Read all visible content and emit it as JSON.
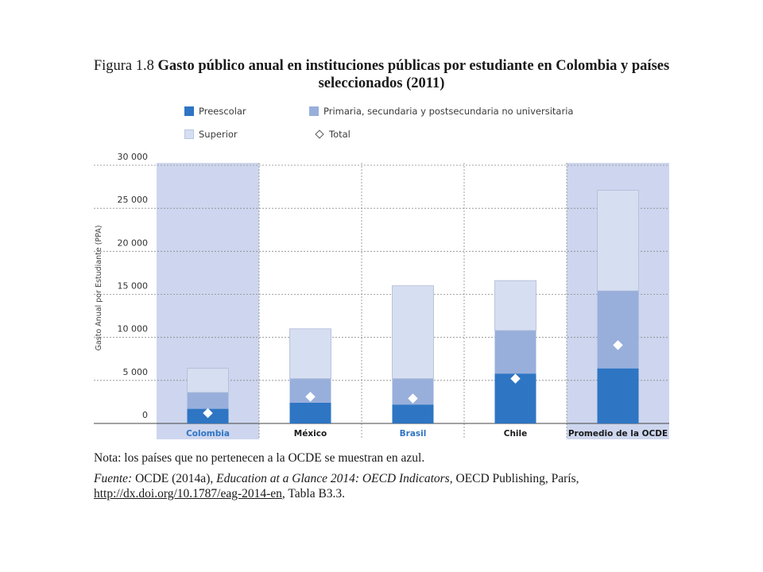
{
  "title": {
    "prefix": "Figura 1.8",
    "text": "Gasto público anual en instituciones públicas por estudiante en Colombia y países seleccionados (2011)"
  },
  "colors": {
    "preescolar": "#2e75c3",
    "primaria": "#98afdb",
    "superior": "#d6def1",
    "panel": "#cdd6ee",
    "total": "#ffffff"
  },
  "chart_data": {
    "type": "bar",
    "stacked": true,
    "categories": [
      "Colombia",
      "México",
      "Brasil",
      "Chile",
      "Promedio de la OCDE"
    ],
    "category_label_colors": [
      "#2e75c3",
      "#1a1a1a",
      "#2e75c3",
      "#1a1a1a",
      "#1a1a1a"
    ],
    "highlighted_categories": [
      "Colombia",
      "Promedio de la OCDE"
    ],
    "series": [
      {
        "name": "Preescolar",
        "values": [
          1700,
          2400,
          2200,
          5800,
          6400
        ]
      },
      {
        "name": "Primaria, secundaria y postsecundaria no universitaria",
        "values": [
          1900,
          2800,
          3000,
          5000,
          9000
        ]
      },
      {
        "name": "Superior",
        "values": [
          2800,
          5800,
          10800,
          5800,
          11700
        ]
      }
    ],
    "markers": {
      "name": "Total",
      "values": [
        1200,
        3100,
        2900,
        5200,
        9100
      ]
    },
    "ylabel": "Gasto Anual por Estudiante (PPA)",
    "ylim": [
      0,
      30000
    ],
    "yticks": [
      0,
      5000,
      10000,
      15000,
      20000,
      25000,
      30000
    ],
    "ytick_labels": [
      "0",
      "5 000",
      "10 000",
      "15 000",
      "20 000",
      "25 000",
      "30 000"
    ],
    "legend_position": "top"
  },
  "footnotes": {
    "nota": "Nota: los países que no pertenecen a la OCDE se muestran en azul.",
    "fuente_label": "Fuente:",
    "fuente_text": " OCDE (2014a), ",
    "fuente_title": "Education at a Glance 2014: OECD Indicators",
    "fuente_publisher": ", OECD Publishing, París, ",
    "fuente_url": "http://dx.doi.org/10.1787/eag-2014-en",
    "fuente_tabla": ", Tabla B3.3."
  }
}
